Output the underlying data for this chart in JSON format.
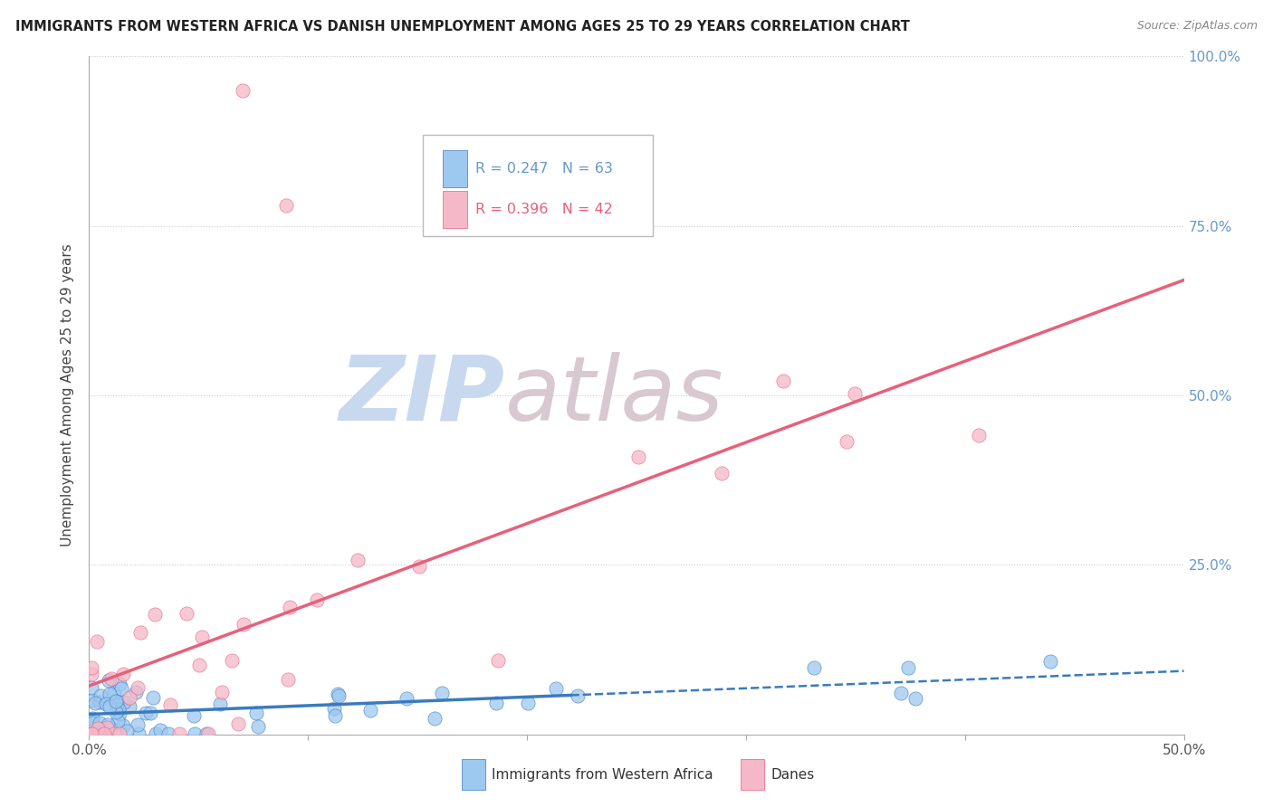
{
  "title": "IMMIGRANTS FROM WESTERN AFRICA VS DANISH UNEMPLOYMENT AMONG AGES 25 TO 29 YEARS CORRELATION CHART",
  "source": "Source: ZipAtlas.com",
  "ylabel": "Unemployment Among Ages 25 to 29 years",
  "xlim": [
    0.0,
    0.5
  ],
  "ylim": [
    0.0,
    1.0
  ],
  "legend_r1": "R = 0.247",
  "legend_n1": "N = 63",
  "legend_r2": "R = 0.396",
  "legend_n2": "N = 42",
  "color_blue": "#9dc8f0",
  "color_blue_line": "#3a7bbf",
  "color_pink": "#f5b8c8",
  "color_pink_line": "#e8607a",
  "watermark_zip": "ZIP",
  "watermark_atlas": "atlas",
  "watermark_color_zip": "#c8d8ee",
  "watermark_color_atlas": "#d8c8d0",
  "background_color": "#ffffff",
  "grid_color": "#cccccc",
  "title_color": "#222222",
  "source_color": "#888888",
  "axis_color": "#aaaaaa",
  "tick_color": "#555555",
  "right_tick_color": "#6699cc"
}
